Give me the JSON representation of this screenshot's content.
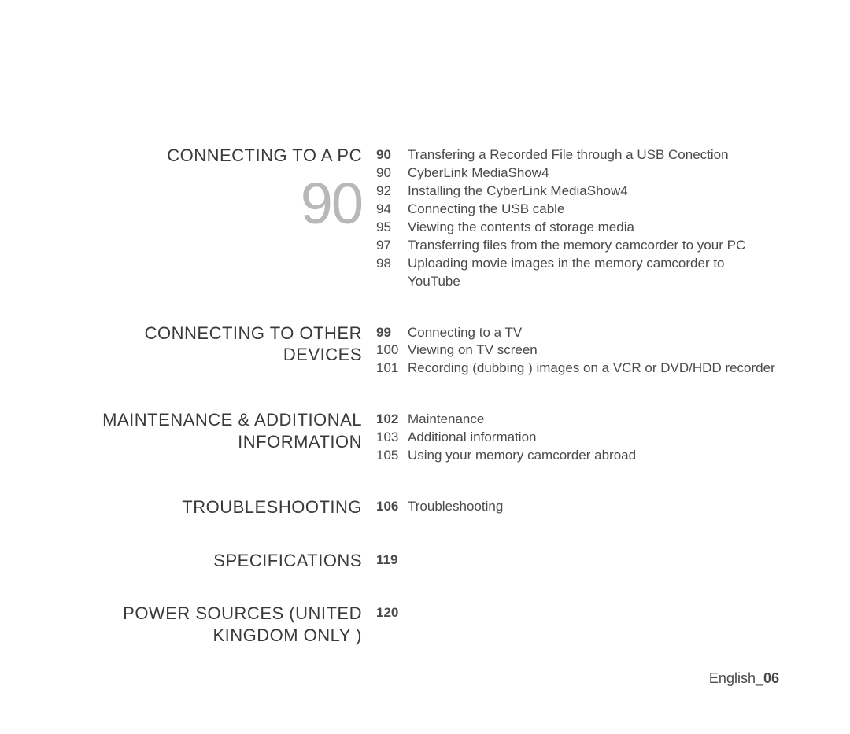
{
  "sections": [
    {
      "title": "CONNECTING TO A PC",
      "big_number": "90",
      "entries": [
        {
          "pg": "90",
          "bold": true,
          "text": "Transfering a Recorded File through a USB Conection"
        },
        {
          "pg": "90",
          "bold": false,
          "text": "CyberLink MediaShow4"
        },
        {
          "pg": "92",
          "bold": false,
          "text": "Installing the CyberLink MediaShow4"
        },
        {
          "pg": "94",
          "bold": false,
          "text": "Connecting the USB cable"
        },
        {
          "pg": "95",
          "bold": false,
          "text": "Viewing the contents of storage media"
        },
        {
          "pg": "97",
          "bold": false,
          "text": "Transferring files from the memory camcorder to your PC"
        },
        {
          "pg": "98",
          "bold": false,
          "text": "Uploading movie images in the memory camcorder to YouTube"
        }
      ]
    },
    {
      "title": "CONNECTING TO OTHER DEVICES",
      "entries": [
        {
          "pg": "99",
          "bold": true,
          "text": "Connecting to a TV"
        },
        {
          "pg": "100",
          "bold": false,
          "text": "Viewing on TV screen"
        },
        {
          "pg": "101",
          "bold": false,
          "text": "Recording (dubbing ) images on a VCR or DVD/HDD recorder"
        }
      ]
    },
    {
      "title": "MAINTENANCE & ADDITIONAL INFORMATION",
      "entries": [
        {
          "pg": "102",
          "bold": true,
          "text": "Maintenance"
        },
        {
          "pg": "103",
          "bold": false,
          "text": "Additional information"
        },
        {
          "pg": "105",
          "bold": false,
          "text": "Using your memory camcorder abroad"
        }
      ]
    },
    {
      "title": "TROUBLESHOOTING",
      "entries": [
        {
          "pg": "106",
          "bold": true,
          "text": "Troubleshooting"
        }
      ]
    },
    {
      "title": "SPECIFICATIONS",
      "entries": [
        {
          "pg": "119",
          "bold": true,
          "text": ""
        }
      ]
    },
    {
      "title": "POWER SOURCES (UNITED KINGDOM ONLY )",
      "entries": [
        {
          "pg": "120",
          "bold": true,
          "text": ""
        }
      ]
    }
  ],
  "footer_label": "English_",
  "footer_page": "06"
}
